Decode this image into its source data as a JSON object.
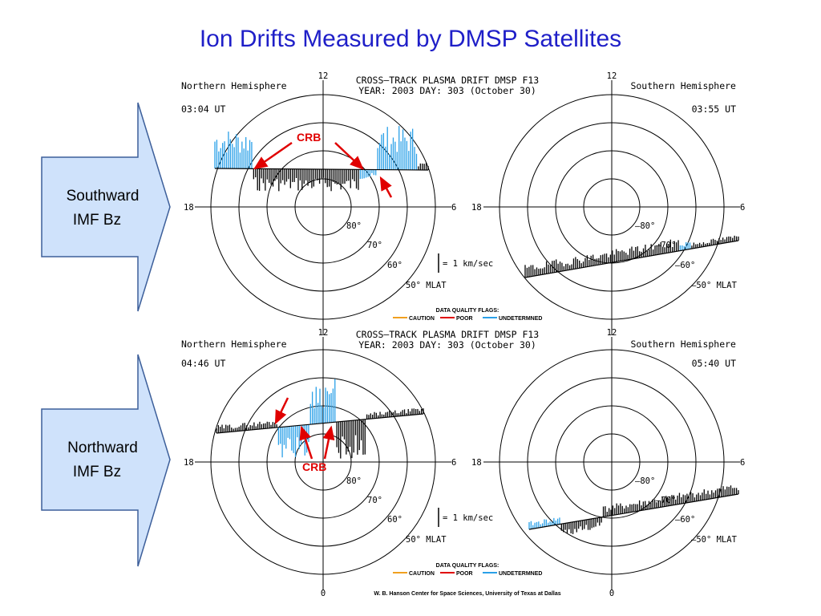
{
  "slide": {
    "title": "Ion Drifts Measured by DMSP Satellites"
  },
  "colors": {
    "title": "#1f1fc8",
    "arrow_fill": "#cfe2fb",
    "arrow_stroke": "#3d5f9a",
    "annotation": "#e00000",
    "caution": "#f0a020",
    "poor": "#e00000",
    "undetermined": "#2aa0e8"
  },
  "arrows": [
    {
      "line1": "Southward",
      "line2": "IMF Bz"
    },
    {
      "line1": "Northward",
      "line2": "IMF Bz"
    }
  ],
  "annotations": {
    "crb": "CRB"
  },
  "panels": [
    {
      "header_line1": "CROSS—TRACK PLASMA DRIFT  DMSP F13",
      "header_line2": "YEAR: 2003  DAY: 303 (October 30)",
      "north": {
        "hemisphere": "Northern Hemisphere",
        "time": "03:04 UT"
      },
      "south": {
        "hemisphere": "Southern Hemisphere",
        "time": "03:55 UT"
      },
      "scale_label": "= 1 km/sec",
      "legend": {
        "title": "DATA QUALITY FLAGS:",
        "caution": "CAUTION",
        "poor": "POOR",
        "undetermined": "UNDETERMNED"
      }
    },
    {
      "header_line1": "CROSS—TRACK PLASMA DRIFT  DMSP F13",
      "header_line2": "YEAR: 2003  DAY: 303 (October 30)",
      "north": {
        "hemisphere": "Northern Hemisphere",
        "time": "04:46 UT"
      },
      "south": {
        "hemisphere": "Southern Hemisphere",
        "time": "05:40 UT"
      },
      "scale_label": "= 1 km/sec",
      "legend": {
        "title": "DATA QUALITY FLAGS:",
        "caution": "CAUTION",
        "poor": "POOR",
        "undetermined": "UNDETERMNED"
      }
    }
  ],
  "mlt_labels": {
    "noon": "12",
    "dusk": "18",
    "dawn": "6",
    "midnight": "0"
  },
  "lat_labels": {
    "lat80": "80°",
    "lat70": "70°",
    "lat60": "60°",
    "lat50": "50° MLAT",
    "s_lat80": "—80°",
    "s_lat70": "—70°",
    "s_lat60": "—60°",
    "s_lat50": "—50° MLAT"
  },
  "footer": "W. B. Hanson Center for Space Sciences, University of Texas at Dallas"
}
